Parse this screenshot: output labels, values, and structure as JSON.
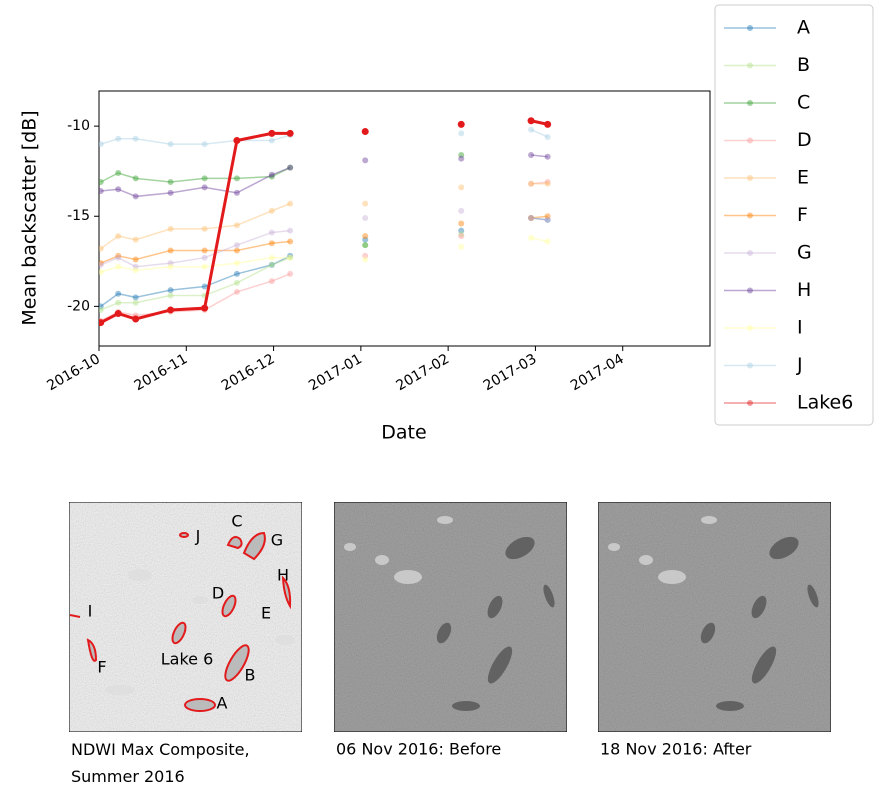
{
  "chart_data": {
    "type": "line",
    "ylabel": "Mean backscatter [dB]",
    "xlabel": "Date",
    "x": [
      0.02,
      0.22,
      0.42,
      0.82,
      1.21,
      1.58,
      1.98,
      2.19,
      2.6,
      3.05,
      3.6,
      4.15,
      4.55,
      4.95,
      5.14
    ],
    "xlim": [
      0,
      7
    ],
    "xticks": [
      {
        "value": 0,
        "label": "2016-10"
      },
      {
        "value": 1,
        "label": "2016-11"
      },
      {
        "value": 2,
        "label": "2016-12"
      },
      {
        "value": 3,
        "label": "2017-01"
      },
      {
        "value": 4,
        "label": "2017-02"
      },
      {
        "value": 5,
        "label": "2017-03"
      },
      {
        "value": 6,
        "label": "2017-04"
      }
    ],
    "ylim": [
      -22.2,
      -8.05
    ],
    "yticks": [
      -20,
      -15,
      -10
    ],
    "highlight": "Lake6",
    "series": [
      {
        "name": "A",
        "color": "#1f78b4",
        "values": [
          -20.0,
          -19.3,
          -19.5,
          -19.1,
          -18.9,
          -18.2,
          -17.7,
          -17.2,
          null,
          -16.3,
          null,
          -15.8,
          null,
          -15.1,
          -15.2
        ]
      },
      {
        "name": "B",
        "color": "#b2df8a",
        "values": [
          -20.2,
          -19.8,
          -19.8,
          -19.4,
          -19.4,
          -18.7,
          -17.7,
          -17.3,
          null,
          -16.6,
          null,
          -16.0,
          null,
          null,
          null
        ]
      },
      {
        "name": "C",
        "color": "#33a02c",
        "values": [
          -13.1,
          -12.6,
          -12.9,
          -13.1,
          -12.9,
          -12.9,
          -12.8,
          -12.3,
          null,
          -16.6,
          null,
          -11.6,
          null,
          null,
          null
        ]
      },
      {
        "name": "D",
        "color": "#fb9a99",
        "values": [
          -20.8,
          -20.3,
          -20.5,
          -20.3,
          -20.2,
          -19.2,
          -18.6,
          -18.2,
          null,
          -17.2,
          null,
          -16.1,
          null,
          -13.2,
          -13.1
        ]
      },
      {
        "name": "E",
        "color": "#fdbf6f",
        "values": [
          -16.8,
          -16.1,
          -16.3,
          -15.7,
          -15.7,
          -15.5,
          -14.7,
          -14.3,
          null,
          -14.3,
          null,
          -13.4,
          null,
          -13.2,
          -13.2
        ]
      },
      {
        "name": "F",
        "color": "#ff7f00",
        "values": [
          -17.6,
          -17.2,
          -17.4,
          -16.9,
          -16.9,
          -16.9,
          -16.5,
          -16.4,
          null,
          -16.1,
          null,
          -15.4,
          null,
          -15.1,
          -15.0
        ]
      },
      {
        "name": "G",
        "color": "#cab2d6",
        "values": [
          -17.7,
          -17.3,
          -17.8,
          -17.6,
          -17.3,
          -16.6,
          -15.9,
          -15.8,
          null,
          -15.1,
          null,
          -14.7,
          null,
          -15.1,
          -15.2
        ]
      },
      {
        "name": "H",
        "color": "#6a3d9a",
        "values": [
          -13.6,
          -13.5,
          -13.9,
          -13.7,
          -13.4,
          -13.7,
          -12.7,
          -12.3,
          null,
          -11.9,
          null,
          -11.8,
          null,
          -11.6,
          -11.7
        ]
      },
      {
        "name": "I",
        "color": "#ffff99",
        "values": [
          -18.1,
          -17.8,
          -18.0,
          -17.8,
          -17.8,
          -17.6,
          -17.3,
          -17.3,
          null,
          -17.4,
          null,
          -16.7,
          null,
          -16.2,
          -16.4
        ]
      },
      {
        "name": "J",
        "color": "#a6cee3",
        "values": [
          -11.0,
          -10.7,
          -10.7,
          -11.0,
          -11.0,
          -10.8,
          -10.8,
          -10.5,
          null,
          null,
          null,
          -10.4,
          null,
          -10.2,
          -10.6
        ]
      },
      {
        "name": "Lake6",
        "color": "#e31a1c",
        "values": [
          -20.9,
          -20.4,
          -20.7,
          -20.2,
          -20.1,
          -10.8,
          -10.4,
          -10.4,
          null,
          -10.3,
          null,
          -9.9,
          null,
          -9.7,
          -9.9
        ]
      }
    ]
  },
  "panels": [
    {
      "caption": "NDWI Max Composite, Summer 2016",
      "labels": [
        "J",
        "C",
        "G",
        "H",
        "D",
        "E",
        "I",
        "Lake 6",
        "B",
        "F",
        "A"
      ]
    },
    {
      "caption": "06 Nov 2016: Before"
    },
    {
      "caption": "18 Nov 2016: After"
    }
  ]
}
